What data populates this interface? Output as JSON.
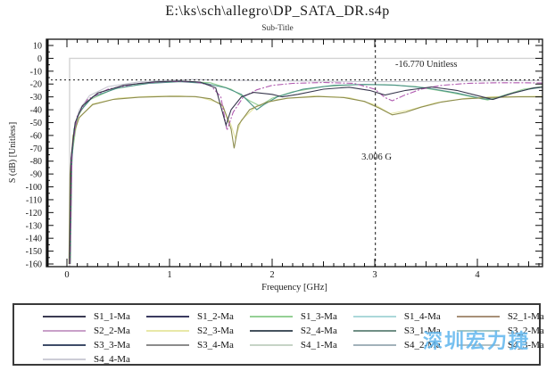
{
  "page": {
    "title": "E:\\ks\\sch\\allegro\\DP_SATA_DR.s4p",
    "subtitle": "Sub-Title"
  },
  "watermark": {
    "text": "深圳宏力捷",
    "color": "#5fb6ee"
  },
  "chart_data": {
    "type": "line",
    "title": "E:\\ks\\sch\\allegro\\DP_SATA_DR.s4p",
    "subtitle": "Sub-Title",
    "xlabel": "Frequency [GHz]",
    "ylabel": "S (dB) [Unitless]",
    "xlim": [
      0,
      4.64
    ],
    "ylim": [
      -160,
      10
    ],
    "x_ticks": [
      0,
      1,
      2,
      3,
      4
    ],
    "y_ticks": [
      10,
      0,
      -10,
      -20,
      -30,
      -40,
      -50,
      -60,
      -70,
      -80,
      -90,
      -100,
      -110,
      -120,
      -130,
      -140,
      -150,
      -160
    ],
    "grid": false,
    "legend_position": "bottom",
    "markers": {
      "horizontal": {
        "value": -16.77,
        "label": "-16.770 Unitless"
      },
      "vertical": {
        "value": 3.006,
        "label": "3.006 G"
      }
    },
    "reference_level": {
      "value": 0,
      "color": "#d2d2d2"
    },
    "series": [
      {
        "name": "trace-light-gray",
        "color": "#c9c9d2",
        "dash": "",
        "points": [
          [
            0.035,
            -160
          ],
          [
            0.045,
            -80
          ],
          [
            0.07,
            -55
          ],
          [
            0.12,
            -40
          ],
          [
            0.22,
            -29
          ],
          [
            0.4,
            -22
          ],
          [
            0.7,
            -18.3
          ],
          [
            1.0,
            -16.9
          ],
          [
            1.25,
            -16.5
          ],
          [
            1.5,
            -17.0
          ],
          [
            2.0,
            -17.5
          ],
          [
            2.5,
            -17.8
          ],
          [
            3.0,
            -18.2
          ],
          [
            3.5,
            -18.0
          ],
          [
            4.0,
            -17.6
          ],
          [
            4.3,
            -17.4
          ],
          [
            4.63,
            -17.3
          ]
        ]
      },
      {
        "name": "trace-pale-yellow",
        "color": "#e6e6a4",
        "dash": "",
        "points": [
          [
            0.025,
            -160
          ],
          [
            0.04,
            -80
          ],
          [
            0.1,
            -48
          ],
          [
            0.25,
            -35.5
          ],
          [
            0.5,
            -31
          ],
          [
            0.8,
            -29.6
          ],
          [
            1.1,
            -29.2
          ],
          [
            1.3,
            -30.3
          ],
          [
            1.5,
            -35
          ],
          [
            1.6,
            -52
          ],
          [
            1.64,
            -62
          ],
          [
            1.7,
            -48
          ],
          [
            1.85,
            -37
          ],
          [
            2.05,
            -32
          ],
          [
            2.4,
            -29.2
          ],
          [
            2.75,
            -30.5
          ],
          [
            3.0,
            -36
          ],
          [
            3.15,
            -43
          ],
          [
            3.35,
            -40
          ],
          [
            3.6,
            -34.5
          ],
          [
            3.9,
            -31
          ],
          [
            4.2,
            -29.8
          ],
          [
            4.63,
            -29.5
          ]
        ]
      },
      {
        "name": "trace-light-green",
        "color": "#95cf95",
        "dash": "",
        "points": [
          [
            0.035,
            -160
          ],
          [
            0.05,
            -75
          ],
          [
            0.1,
            -46
          ],
          [
            0.2,
            -33
          ],
          [
            0.45,
            -24
          ],
          [
            0.8,
            -19
          ],
          [
            1.1,
            -17.8
          ],
          [
            1.4,
            -19
          ],
          [
            1.6,
            -24
          ],
          [
            1.78,
            -33
          ],
          [
            1.88,
            -37
          ],
          [
            2.0,
            -31
          ],
          [
            2.2,
            -26
          ],
          [
            2.5,
            -22
          ],
          [
            2.8,
            -20.5
          ],
          [
            3.1,
            -20.5
          ],
          [
            3.4,
            -22
          ],
          [
            3.7,
            -26
          ],
          [
            3.95,
            -30
          ],
          [
            4.1,
            -32.5
          ],
          [
            4.25,
            -29
          ],
          [
            4.45,
            -24
          ],
          [
            4.63,
            -22
          ]
        ]
      },
      {
        "name": "trace-teal",
        "color": "#4a9286",
        "dash": "",
        "points": [
          [
            0.03,
            -160
          ],
          [
            0.045,
            -85
          ],
          [
            0.07,
            -55
          ],
          [
            0.12,
            -42
          ],
          [
            0.25,
            -30
          ],
          [
            0.5,
            -23
          ],
          [
            0.8,
            -19.5
          ],
          [
            1.1,
            -18.2
          ],
          [
            1.35,
            -19.5
          ],
          [
            1.55,
            -23
          ],
          [
            1.7,
            -28
          ],
          [
            1.85,
            -40
          ],
          [
            1.92,
            -36
          ],
          [
            2.05,
            -30
          ],
          [
            2.3,
            -24
          ],
          [
            2.6,
            -21
          ],
          [
            2.9,
            -20.3
          ],
          [
            3.2,
            -20.8
          ],
          [
            3.5,
            -23
          ],
          [
            3.8,
            -27
          ],
          [
            4.05,
            -31.5
          ],
          [
            4.15,
            -32
          ],
          [
            4.3,
            -28
          ],
          [
            4.5,
            -24
          ],
          [
            4.63,
            -22.5
          ]
        ]
      },
      {
        "name": "trace-olive",
        "color": "#8d8d4f",
        "dash": "",
        "points": [
          [
            0.02,
            -160
          ],
          [
            0.03,
            -90
          ],
          [
            0.06,
            -60
          ],
          [
            0.12,
            -46
          ],
          [
            0.25,
            -36
          ],
          [
            0.45,
            -32
          ],
          [
            0.7,
            -30.3
          ],
          [
            1.0,
            -29.6
          ],
          [
            1.25,
            -29.8
          ],
          [
            1.4,
            -31.5
          ],
          [
            1.52,
            -37
          ],
          [
            1.6,
            -55
          ],
          [
            1.63,
            -70
          ],
          [
            1.67,
            -52
          ],
          [
            1.78,
            -40
          ],
          [
            1.95,
            -34
          ],
          [
            2.15,
            -31
          ],
          [
            2.45,
            -29.7
          ],
          [
            2.7,
            -30.5
          ],
          [
            2.9,
            -33.5
          ],
          [
            3.05,
            -39
          ],
          [
            3.17,
            -44
          ],
          [
            3.3,
            -42
          ],
          [
            3.45,
            -38
          ],
          [
            3.65,
            -34
          ],
          [
            3.85,
            -31.7
          ],
          [
            4.1,
            -30.5
          ],
          [
            4.4,
            -30
          ],
          [
            4.63,
            -30
          ]
        ]
      },
      {
        "name": "trace-magenta-dashed",
        "color": "#b05ab0",
        "dash": "7 2 2 2",
        "points": [
          [
            0.03,
            -160
          ],
          [
            0.05,
            -70
          ],
          [
            0.1,
            -45
          ],
          [
            0.2,
            -32
          ],
          [
            0.4,
            -24
          ],
          [
            0.7,
            -19.5
          ],
          [
            1.0,
            -18
          ],
          [
            1.25,
            -18.3
          ],
          [
            1.4,
            -21
          ],
          [
            1.5,
            -30
          ],
          [
            1.56,
            -56
          ],
          [
            1.62,
            -42
          ],
          [
            1.72,
            -30
          ],
          [
            1.85,
            -24.5
          ],
          [
            2.0,
            -21
          ],
          [
            2.2,
            -19.5
          ],
          [
            2.5,
            -18.8
          ],
          [
            2.8,
            -19.5
          ],
          [
            3.0,
            -24
          ],
          [
            3.1,
            -30.5
          ],
          [
            3.17,
            -33
          ],
          [
            3.28,
            -29
          ],
          [
            3.45,
            -24
          ],
          [
            3.65,
            -21
          ],
          [
            3.9,
            -19.5
          ],
          [
            4.2,
            -19
          ],
          [
            4.45,
            -19
          ],
          [
            4.63,
            -19.2
          ]
        ]
      },
      {
        "name": "trace-dark-navy",
        "color": "#38384e",
        "dash": "",
        "points": [
          [
            0.025,
            -160
          ],
          [
            0.04,
            -78
          ],
          [
            0.08,
            -50
          ],
          [
            0.15,
            -37
          ],
          [
            0.3,
            -27
          ],
          [
            0.55,
            -21
          ],
          [
            0.85,
            -18.3
          ],
          [
            1.1,
            -17.6
          ],
          [
            1.3,
            -18.5
          ],
          [
            1.45,
            -23
          ],
          [
            1.55,
            -52
          ],
          [
            1.6,
            -40
          ],
          [
            1.7,
            -30
          ],
          [
            1.82,
            -26.5
          ],
          [
            2.0,
            -28
          ],
          [
            2.1,
            -30
          ],
          [
            2.25,
            -28
          ],
          [
            2.5,
            -24
          ],
          [
            2.75,
            -22.5
          ],
          [
            2.95,
            -25
          ],
          [
            3.1,
            -28.5
          ],
          [
            3.3,
            -25
          ],
          [
            3.55,
            -22.3
          ],
          [
            3.8,
            -25
          ],
          [
            4.0,
            -29
          ],
          [
            4.15,
            -32
          ],
          [
            4.35,
            -27
          ],
          [
            4.55,
            -23
          ],
          [
            4.63,
            -22.5
          ]
        ]
      }
    ],
    "legend_entries": [
      {
        "label": "S1_1-Ma",
        "color": "#3a3a52"
      },
      {
        "label": "S1_2-Ma",
        "color": "#3a3a60"
      },
      {
        "label": "S1_3-Ma",
        "color": "#95d095"
      },
      {
        "label": "S1_4-Ma",
        "color": "#abd8da"
      },
      {
        "label": "S2_1-Ma",
        "color": "#a89078"
      },
      {
        "label": "S2_2-Ma",
        "color": "#c9a0c9"
      },
      {
        "label": "S2_3-Ma",
        "color": "#e8e8a8"
      },
      {
        "label": "S2_4-Ma",
        "color": "#46525e"
      },
      {
        "label": "S3_1-Ma",
        "color": "#708f85"
      },
      {
        "label": "S3_2-Ma",
        "color": "#a2c6c6"
      },
      {
        "label": "S3_3-Ma",
        "color": "#3e4c68"
      },
      {
        "label": "S3_4-Ma",
        "color": "#8c8c8c"
      },
      {
        "label": "S4_1-Ma",
        "color": "#c6d4c6"
      },
      {
        "label": "S4_2-Ma",
        "color": "#a2b2ba"
      },
      {
        "label": "S4_3-Ma",
        "color": "#b4c2c6"
      },
      {
        "label": "S4_4-Ma",
        "color": "#ccccd6"
      }
    ]
  }
}
